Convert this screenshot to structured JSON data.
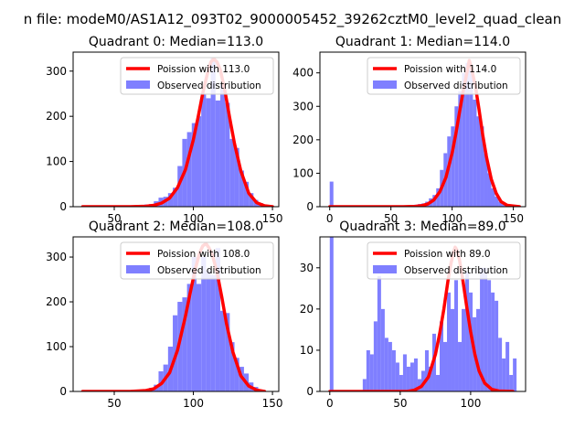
{
  "figure": {
    "suptitle": "n file: modeM0/AS1A12_093T02_9000005452_39262cztM0_level2_quad_clean"
  },
  "colors": {
    "histogram": "#7f7fff",
    "poisson_curve": "#ff0000",
    "axes": "#000000",
    "background": "#ffffff"
  },
  "chart_data": [
    {
      "type": "bar",
      "title": "Quadrant 0: Median=113.0",
      "xlim": [
        24,
        154
      ],
      "ylim": [
        0,
        342
      ],
      "xticks": [
        50,
        100,
        150
      ],
      "yticks": [
        0,
        100,
        200,
        300
      ],
      "legend_position": "top-right",
      "series": [
        {
          "name": "Poission with 113.0",
          "kind": "line",
          "x": [
            30,
            60,
            70,
            75,
            80,
            85,
            90,
            95,
            100,
            103,
            106,
            109,
            111,
            113,
            115,
            117,
            120,
            123,
            126,
            130,
            135,
            140,
            145,
            150
          ],
          "values": [
            0,
            0,
            1,
            3,
            8,
            19,
            42,
            82,
            148,
            198,
            252,
            296,
            320,
            327,
            320,
            303,
            255,
            196,
            140,
            79,
            30,
            9,
            2,
            0
          ]
        },
        {
          "name": "Observed distribution",
          "kind": "histogram",
          "bin_width": 3,
          "x": [
            30,
            33,
            36,
            39,
            42,
            45,
            48,
            51,
            54,
            57,
            60,
            63,
            66,
            69,
            72,
            75,
            78,
            81,
            84,
            87,
            90,
            93,
            96,
            99,
            102,
            105,
            108,
            111,
            114,
            117,
            120,
            123,
            126,
            129,
            132,
            135,
            138,
            141,
            144
          ],
          "values": [
            0,
            0,
            0,
            0,
            0,
            0,
            0,
            1,
            0,
            1,
            2,
            1,
            3,
            5,
            6,
            12,
            20,
            22,
            30,
            42,
            90,
            150,
            165,
            185,
            200,
            250,
            240,
            330,
            235,
            270,
            230,
            150,
            130,
            80,
            55,
            30,
            15,
            8,
            3
          ]
        }
      ]
    },
    {
      "type": "bar",
      "title": "Quadrant 1: Median=114.0",
      "xlim": [
        -8,
        160
      ],
      "ylim": [
        0,
        462
      ],
      "xticks": [
        0,
        50,
        100,
        150
      ],
      "yticks": [
        0,
        100,
        200,
        300,
        400
      ],
      "legend_position": "top-right",
      "series": [
        {
          "name": "Poission with 114.0",
          "kind": "line",
          "x": [
            0,
            60,
            70,
            75,
            80,
            85,
            90,
            95,
            100,
            103,
            106,
            109,
            112,
            114,
            116,
            119,
            122,
            125,
            128,
            132,
            136,
            140,
            145,
            155
          ],
          "values": [
            0,
            0,
            1,
            3,
            8,
            20,
            45,
            88,
            160,
            218,
            282,
            345,
            400,
            437,
            410,
            360,
            290,
            215,
            150,
            82,
            40,
            15,
            4,
            0
          ]
        },
        {
          "name": "Observed distribution",
          "kind": "histogram",
          "bin_width": 3,
          "x": [
            0,
            3,
            6,
            9,
            12,
            15,
            18,
            21,
            24,
            27,
            30,
            33,
            36,
            39,
            42,
            45,
            48,
            51,
            54,
            57,
            60,
            63,
            66,
            69,
            72,
            75,
            78,
            81,
            84,
            87,
            90,
            93,
            96,
            99,
            102,
            105,
            108,
            111,
            114,
            117,
            120,
            123,
            126,
            129,
            132,
            135,
            138,
            141,
            144,
            147,
            150
          ],
          "values": [
            75,
            4,
            2,
            2,
            1,
            1,
            1,
            1,
            1,
            1,
            2,
            1,
            1,
            1,
            1,
            2,
            1,
            2,
            2,
            2,
            3,
            3,
            4,
            6,
            8,
            10,
            15,
            25,
            35,
            55,
            110,
            160,
            210,
            240,
            300,
            345,
            400,
            430,
            410,
            320,
            270,
            240,
            160,
            100,
            55,
            30,
            15,
            8,
            4,
            2,
            1
          ]
        }
      ]
    },
    {
      "type": "bar",
      "title": "Quadrant 2: Median=108.0",
      "xlim": [
        24,
        154
      ],
      "ylim": [
        0,
        345
      ],
      "xticks": [
        50,
        100,
        150
      ],
      "yticks": [
        0,
        100,
        200,
        300
      ],
      "legend_position": "top-right",
      "series": [
        {
          "name": "Poission with 108.0",
          "kind": "line",
          "x": [
            30,
            60,
            70,
            75,
            80,
            85,
            90,
            95,
            98,
            101,
            104,
            106,
            108,
            110,
            112,
            115,
            118,
            121,
            125,
            130,
            135,
            140,
            145
          ],
          "values": [
            0,
            0,
            2,
            6,
            18,
            42,
            92,
            168,
            220,
            270,
            310,
            325,
            330,
            320,
            305,
            265,
            210,
            150,
            88,
            35,
            12,
            3,
            0
          ]
        },
        {
          "name": "Observed distribution",
          "kind": "histogram",
          "bin_width": 3,
          "x": [
            30,
            33,
            36,
            39,
            42,
            45,
            48,
            51,
            54,
            57,
            60,
            63,
            66,
            69,
            72,
            75,
            78,
            81,
            84,
            87,
            90,
            93,
            96,
            99,
            102,
            105,
            108,
            111,
            114,
            117,
            120,
            123,
            126,
            129,
            132,
            135,
            138,
            141
          ],
          "values": [
            0,
            0,
            0,
            0,
            0,
            0,
            0,
            1,
            0,
            1,
            2,
            2,
            3,
            5,
            8,
            15,
            45,
            60,
            100,
            170,
            200,
            210,
            240,
            300,
            240,
            300,
            270,
            260,
            320,
            180,
            175,
            110,
            75,
            55,
            40,
            20,
            10,
            3
          ]
        }
      ]
    },
    {
      "type": "bar",
      "title": "Quadrant 3: Median=89.0",
      "xlim": [
        -7,
        139
      ],
      "ylim": [
        0,
        37.5
      ],
      "xticks": [
        0,
        50,
        100
      ],
      "yticks": [
        0,
        10,
        20,
        30
      ],
      "legend_position": "top-right",
      "series": [
        {
          "name": "Poission with 89.0",
          "kind": "line",
          "x": [
            0,
            55,
            60,
            65,
            70,
            75,
            78,
            81,
            84,
            86,
            88,
            89,
            90,
            92,
            94,
            97,
            100,
            103,
            106,
            110,
            115,
            120,
            130
          ],
          "values": [
            0,
            0,
            0.3,
            1.2,
            3.5,
            9,
            14,
            20,
            27,
            31,
            34,
            35,
            34.5,
            32,
            28,
            21,
            14.5,
            9,
            5,
            2,
            0.5,
            0.1,
            0
          ]
        },
        {
          "name": "Observed distribution",
          "kind": "histogram",
          "bin_width": 2.6,
          "x": [
            0,
            2.6,
            5.2,
            7.8,
            10.4,
            13,
            15.6,
            18.2,
            20.8,
            23.4,
            26,
            28.6,
            31.2,
            33.8,
            36.4,
            39,
            41.6,
            44.2,
            46.8,
            49.4,
            52,
            54.6,
            57.2,
            59.8,
            62.4,
            65,
            67.6,
            70.2,
            72.8,
            75.4,
            78,
            80.6,
            83.2,
            85.8,
            88.4,
            91,
            93.6,
            96.2,
            98.8,
            101.4,
            104,
            106.6,
            109.2,
            111.8,
            114.4,
            117,
            119.6,
            122.2,
            124.8,
            127.4,
            130
          ],
          "values": [
            38,
            0,
            0,
            0,
            0,
            0,
            0,
            0,
            0,
            3,
            10,
            9,
            17,
            28,
            20,
            13,
            12,
            10,
            7,
            4,
            9,
            6,
            7,
            8,
            3,
            5,
            10,
            6,
            14,
            4,
            17,
            12,
            24,
            20,
            27,
            12,
            20,
            29,
            24,
            18,
            20,
            30,
            30,
            27,
            24,
            22,
            13,
            8,
            12,
            4,
            8
          ]
        }
      ]
    }
  ]
}
